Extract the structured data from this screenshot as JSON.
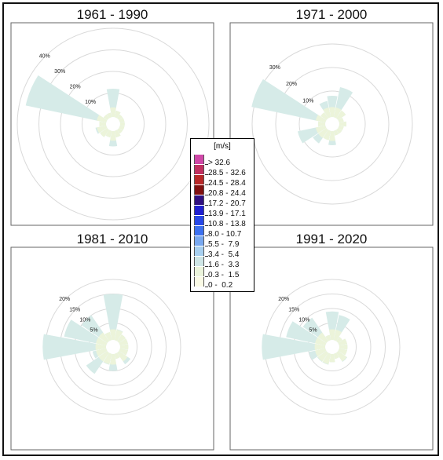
{
  "legend": {
    "unit": "[m/s]",
    "bins": [
      {
        "label": "> 32.6",
        "color": "#d048a8"
      },
      {
        "label": "28.5 - 32.6",
        "color": "#c03060"
      },
      {
        "label": "24.5 - 28.4",
        "color": "#b82828"
      },
      {
        "label": "20.8 - 24.4",
        "color": "#801010"
      },
      {
        "label": "17.2 - 20.7",
        "color": "#301080"
      },
      {
        "label": "13.9 - 17.1",
        "color": "#2020d0"
      },
      {
        "label": "10.8 - 13.8",
        "color": "#2848e8"
      },
      {
        "label": "8.0 - 10.7",
        "color": "#3c70f0"
      },
      {
        "label": "5.5 -  7.9",
        "color": "#78a8f0"
      },
      {
        "label": "3.4 -  5.4",
        "color": "#a8d0f0"
      },
      {
        "label": "1.6 -  3.3",
        "color": "#cfe6e6"
      },
      {
        "label": "0.3 -  1.5",
        "color": "#ecf5dc"
      },
      {
        "label": "0 -  0.2",
        "color": "#fbfbe6"
      }
    ]
  },
  "chart_data": [
    {
      "type": "wind_rose",
      "title": "1961 - 1990",
      "rings": [
        10,
        20,
        30,
        40
      ],
      "ring_labels": [
        "10%",
        "20%",
        "30%",
        "40%"
      ],
      "directions": [
        "N",
        "NNE",
        "NE",
        "ENE",
        "E",
        "ESE",
        "SE",
        "SSE",
        "S",
        "SSW",
        "SW",
        "WSW",
        "W",
        "WNW",
        "NW",
        "NNW"
      ],
      "frequency_percent": [
        12,
        2,
        1,
        1,
        1,
        1,
        1,
        2,
        6,
        2,
        3,
        4,
        2,
        37,
        1,
        1
      ]
    },
    {
      "type": "wind_rose",
      "title": "1971 - 2000",
      "rings": [
        10,
        20,
        30
      ],
      "ring_labels": [
        "10%",
        "20%",
        "30%"
      ],
      "directions": [
        "N",
        "NNE",
        "NE",
        "ENE",
        "E",
        "ESE",
        "SE",
        "SSE",
        "S",
        "SSW",
        "SW",
        "WSW",
        "W",
        "WNW",
        "NW",
        "NNW"
      ],
      "frequency_percent": [
        8,
        12,
        3,
        1,
        2,
        1,
        1,
        1,
        5,
        3,
        6,
        11,
        2,
        31,
        2,
        6
      ]
    },
    {
      "type": "wind_rose",
      "title": "1981 - 2010",
      "rings": [
        5,
        10,
        15,
        20
      ],
      "ring_labels": [
        "5%",
        "10%",
        "15%",
        "20%"
      ],
      "directions": [
        "N",
        "NNE",
        "NE",
        "ENE",
        "E",
        "ESE",
        "SE",
        "SSE",
        "S",
        "SSW",
        "SW",
        "WSW",
        "W",
        "WNW",
        "NW",
        "NNW"
      ],
      "frequency_percent": [
        15,
        3,
        2,
        2,
        2,
        2,
        4,
        1,
        5,
        3,
        8,
        4,
        21,
        14,
        10,
        2
      ]
    },
    {
      "type": "wind_rose",
      "title": "1991 - 2020",
      "rings": [
        5,
        10,
        15,
        20
      ],
      "ring_labels": [
        "5%",
        "10%",
        "15%",
        "20%"
      ],
      "directions": [
        "N",
        "NNE",
        "NE",
        "ENE",
        "E",
        "ESE",
        "SE",
        "SSE",
        "S",
        "SSW",
        "SW",
        "WSW",
        "W",
        "WNW",
        "NW",
        "NNW"
      ],
      "frequency_percent": [
        9,
        8,
        1,
        2,
        2,
        2,
        3,
        1,
        2,
        3,
        3,
        5,
        21,
        13,
        9,
        1
      ]
    }
  ]
}
